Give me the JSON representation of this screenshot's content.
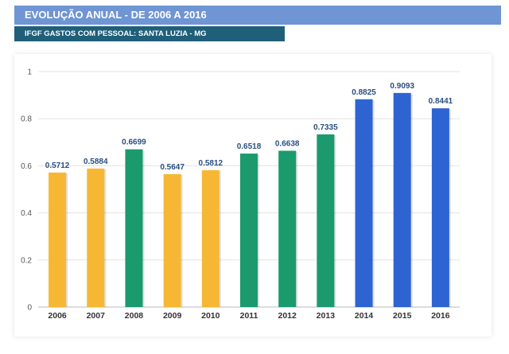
{
  "header": {
    "title": "EVOLUÇÃO ANUAL - DE 2006 A 2016",
    "subtitle": "IFGF GASTOS COM PESSOAL: SANTA LUZIA - MG"
  },
  "colors": {
    "title_bar": "#6f95d4",
    "subtitle_bar": "#1f5f7a",
    "bar_yellow": "#f6b834",
    "bar_green": "#1a9a6d",
    "bar_blue": "#2e64d1"
  },
  "chart_data": {
    "type": "bar",
    "categories": [
      "2006",
      "2007",
      "2008",
      "2009",
      "2010",
      "2011",
      "2012",
      "2013",
      "2014",
      "2015",
      "2016"
    ],
    "values": [
      0.5712,
      0.5884,
      0.6699,
      0.5647,
      0.5812,
      0.6518,
      0.6638,
      0.7335,
      0.8825,
      0.9093,
      0.8441
    ],
    "data_labels": [
      "0.5712",
      "0.5884",
      "0.6699",
      "0.5647",
      "0.5812",
      "0.6518",
      "0.6638",
      "0.7335",
      "0.8825",
      "0.9093",
      "0.8441"
    ],
    "bar_colors": [
      "#f6b834",
      "#f6b834",
      "#1a9a6d",
      "#f6b834",
      "#f6b834",
      "#1a9a6d",
      "#1a9a6d",
      "#1a9a6d",
      "#2e64d1",
      "#2e64d1",
      "#2e64d1"
    ],
    "yticks": [
      0,
      0.2,
      0.4,
      0.6,
      0.8,
      1
    ],
    "ytick_labels": [
      "0",
      "0.2",
      "0.4",
      "0.6",
      "0.8",
      "1"
    ],
    "ylim": [
      0,
      1
    ],
    "grid": true,
    "legend": "none",
    "title": "",
    "xlabel": "",
    "ylabel": ""
  }
}
